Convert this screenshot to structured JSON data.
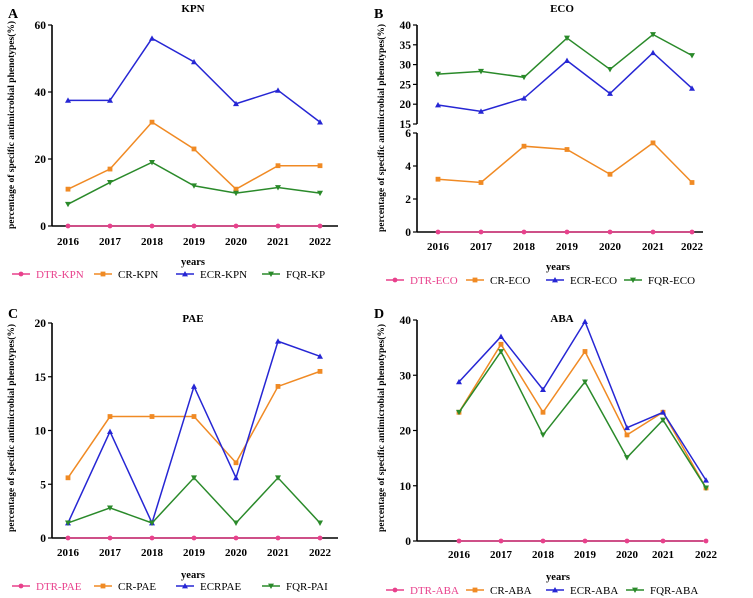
{
  "chart_data": [
    {
      "panel": "A",
      "type": "line",
      "title": "KPN",
      "xlabel": "years",
      "ylabel": "percentage of specific antimicrobial phenotypes(%)",
      "categories": [
        "2016",
        "2017",
        "2018",
        "2019",
        "2020",
        "2021",
        "2022"
      ],
      "ylim": [
        0,
        60
      ],
      "yticks": [
        "0",
        "20",
        "40",
        "60"
      ],
      "legend_position": "bottom",
      "series": [
        {
          "name": "DTR-KPN",
          "color": "#e8418c",
          "marker": "circle",
          "values": [
            0,
            0,
            0,
            0,
            0,
            0,
            0
          ]
        },
        {
          "name": "CR-KPN",
          "color": "#f08a24",
          "marker": "square",
          "values": [
            11.0,
            17.0,
            31.0,
            23.0,
            11.0,
            18.0,
            18.0
          ]
        },
        {
          "name": "ECR-KPN",
          "color": "#2626d4",
          "marker": "triangle",
          "values": [
            37.5,
            37.5,
            56.0,
            49.0,
            36.5,
            40.5,
            31.0
          ]
        },
        {
          "name": "FQR-KP",
          "color": "#2a8a2a",
          "marker": "triangle-down",
          "values": [
            6.5,
            13.0,
            19.0,
            12.0,
            9.8,
            11.5,
            9.8
          ]
        }
      ]
    },
    {
      "panel": "B",
      "type": "line",
      "title": "ECO",
      "xlabel": "years",
      "ylabel": "percentage of specific antimicrobial phenotypes(%)",
      "categories": [
        "2016",
        "2017",
        "2018",
        "2019",
        "2020",
        "2021",
        "2022"
      ],
      "broken_axis": true,
      "ylim_upper": [
        15,
        40
      ],
      "ylim_lower": [
        0,
        6
      ],
      "yticks_upper": [
        "15",
        "20",
        "25",
        "30",
        "35",
        "40"
      ],
      "yticks_lower": [
        "0",
        "2",
        "4",
        "6"
      ],
      "legend_position": "bottom",
      "series": [
        {
          "name": "DTR-ECO",
          "color": "#e8418c",
          "marker": "circle",
          "values": [
            0,
            0,
            0,
            0,
            0,
            0,
            0
          ]
        },
        {
          "name": "CR-ECO",
          "color": "#f08a24",
          "marker": "square",
          "values": [
            3.2,
            3.0,
            5.2,
            5.0,
            3.5,
            5.4,
            3.0
          ]
        },
        {
          "name": "ECR-ECO",
          "color": "#2626d4",
          "marker": "triangle",
          "values": [
            19.8,
            18.2,
            21.5,
            31.0,
            22.7,
            33.0,
            24.0
          ]
        },
        {
          "name": "FQR-ECO",
          "color": "#2a8a2a",
          "marker": "triangle-down",
          "values": [
            27.6,
            28.3,
            26.8,
            36.7,
            28.8,
            37.6,
            32.3
          ]
        }
      ]
    },
    {
      "panel": "C",
      "type": "line",
      "title": "PAE",
      "xlabel": "years",
      "ylabel": "percentage of specific antimicrobial phenotypes(%)",
      "categories": [
        "2016",
        "2017",
        "2018",
        "2019",
        "2020",
        "2021",
        "2022"
      ],
      "ylim": [
        0,
        20
      ],
      "yticks": [
        "0",
        "5",
        "10",
        "15",
        "20"
      ],
      "legend_position": "bottom",
      "series": [
        {
          "name": "DTR-PAE",
          "color": "#e8418c",
          "marker": "circle",
          "values": [
            0,
            0,
            0,
            0,
            0,
            0,
            0
          ]
        },
        {
          "name": "CR-PAE",
          "color": "#f08a24",
          "marker": "square",
          "values": [
            5.6,
            11.3,
            11.3,
            11.3,
            7.0,
            14.1,
            15.5
          ]
        },
        {
          "name": "ECRPAE",
          "color": "#2626d4",
          "marker": "triangle",
          "values": [
            1.4,
            9.9,
            1.4,
            14.1,
            5.6,
            18.3,
            16.9
          ]
        },
        {
          "name": "FQR-PAI",
          "color": "#2a8a2a",
          "marker": "triangle-down",
          "values": [
            1.4,
            2.8,
            1.4,
            5.6,
            1.4,
            5.6,
            1.4
          ]
        }
      ]
    },
    {
      "panel": "D",
      "type": "line",
      "title": "ABA",
      "xlabel": "years",
      "ylabel": "percentage of specific antimicrobial phenotypes(%)",
      "categories": [
        "2016",
        "2017",
        "2018",
        "2019",
        "2020",
        "2021",
        "2022"
      ],
      "ylim": [
        0,
        40
      ],
      "yticks": [
        "0",
        "10",
        "20",
        "30",
        "40"
      ],
      "legend_position": "bottom",
      "series": [
        {
          "name": "DTR-ABA",
          "color": "#e8418c",
          "marker": "circle",
          "values": [
            0,
            0,
            0,
            0,
            0,
            0,
            0
          ]
        },
        {
          "name": "CR-ABA",
          "color": "#f08a24",
          "marker": "square",
          "values": [
            23.3,
            35.6,
            23.3,
            34.3,
            19.2,
            23.3,
            9.6
          ]
        },
        {
          "name": "ECR-ABA",
          "color": "#2626d4",
          "marker": "triangle",
          "values": [
            28.8,
            37.0,
            27.4,
            39.7,
            20.5,
            23.3,
            11.0
          ]
        },
        {
          "name": "FQR-ABA",
          "color": "#2a8a2a",
          "marker": "triangle-down",
          "values": [
            23.3,
            34.3,
            19.2,
            28.8,
            15.1,
            21.9,
            9.6
          ]
        }
      ]
    }
  ]
}
